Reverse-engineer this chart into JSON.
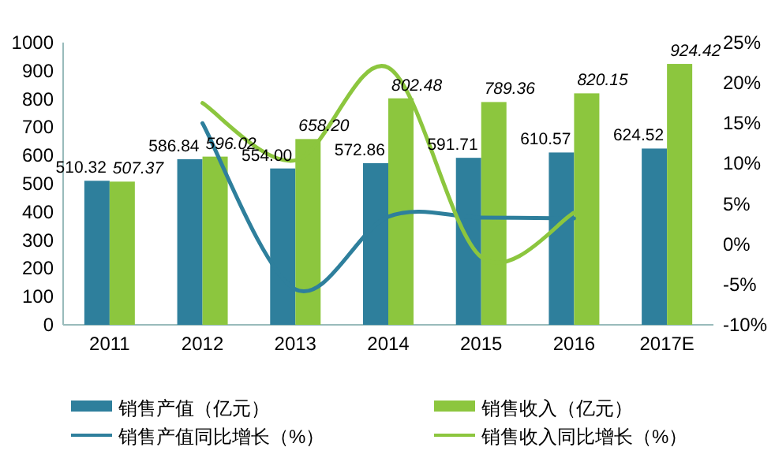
{
  "chart_data": {
    "type": "bar",
    "categories": [
      "2011",
      "2012",
      "2013",
      "2014",
      "2015",
      "2016",
      "2017E"
    ],
    "series": [
      {
        "name": "销售产值（亿元）",
        "color": "#2e7f9c",
        "values": [
          510.32,
          586.84,
          554.0,
          572.86,
          591.71,
          610.57,
          624.52
        ],
        "value_labels": [
          "510.32",
          "586.84",
          "554.00",
          "572.86",
          "591.71",
          "610.57",
          "624.52"
        ]
      },
      {
        "name": "销售收入（亿元）",
        "color": "#8cc63e",
        "values": [
          507.37,
          596.02,
          658.2,
          802.48,
          789.36,
          820.15,
          924.42
        ],
        "value_labels": [
          "507.37",
          "596.02",
          "658.20",
          "802.48",
          "789.36",
          "820.15",
          "924.42"
        ]
      },
      {
        "name": "销售产值同比增长（%）",
        "type": "line",
        "axis": "y2",
        "color": "#2e7f9c",
        "values": [
          null,
          15.0,
          -5.6,
          3.4,
          3.3,
          3.2,
          null
        ]
      },
      {
        "name": "销售收入同比增长（%）",
        "type": "line",
        "axis": "y2",
        "color": "#8cc63e",
        "values": [
          null,
          17.5,
          10.4,
          21.9,
          -1.6,
          3.9,
          null
        ]
      }
    ],
    "ylim": [
      0,
      1000
    ],
    "yticks": [
      0,
      100,
      200,
      300,
      400,
      500,
      600,
      700,
      800,
      900,
      1000
    ],
    "y2lim": [
      -10,
      25
    ],
    "y2ticks": [
      {
        "value": -10,
        "label": "-10%"
      },
      {
        "value": -5,
        "label": "-5%"
      },
      {
        "value": 0,
        "label": "0%"
      },
      {
        "value": 5,
        "label": "5%"
      },
      {
        "value": 10,
        "label": "10%"
      },
      {
        "value": 15,
        "label": "15%"
      },
      {
        "value": 20,
        "label": "20%"
      },
      {
        "value": 25,
        "label": "25%"
      }
    ],
    "legend": "bottom",
    "grid": false
  }
}
